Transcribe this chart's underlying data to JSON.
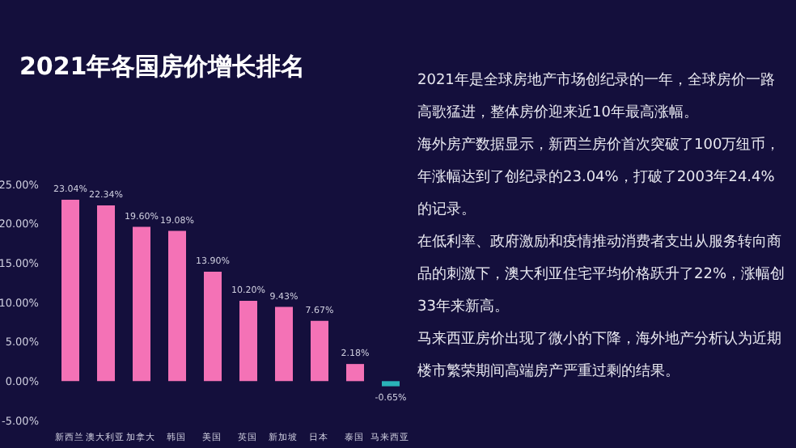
{
  "chart_data": {
    "type": "bar",
    "title": "2021年各国房价增长排名",
    "categories": [
      "新西兰",
      "澳大利亚",
      "加拿大",
      "韩国",
      "美国",
      "英国",
      "新加坡",
      "日本",
      "泰国",
      "马来西亚"
    ],
    "values": [
      23.04,
      22.34,
      19.6,
      19.08,
      13.9,
      10.2,
      9.43,
      7.67,
      2.18,
      -0.65
    ],
    "value_labels": [
      "23.04%",
      "22.34%",
      "19.60%",
      "19.08%",
      "13.90%",
      "10.20%",
      "9.43%",
      "7.67%",
      "2.18%",
      "-0.65%"
    ],
    "colors": [
      "#f472b6",
      "#f472b6",
      "#f472b6",
      "#f472b6",
      "#f472b6",
      "#f472b6",
      "#f472b6",
      "#f472b6",
      "#f472b6",
      "#2ab3b8"
    ],
    "ylim": [
      -5,
      25
    ],
    "yticks": [
      {
        "value": -5,
        "label": "-5.00%"
      },
      {
        "value": 0,
        "label": "0.00%"
      },
      {
        "value": 5,
        "label": "5.00%"
      },
      {
        "value": 10,
        "label": "10.00%"
      },
      {
        "value": 15,
        "label": "15.00%"
      },
      {
        "value": 20,
        "label": "20.00%"
      },
      {
        "value": 25,
        "label": "25.00%"
      }
    ],
    "grid": false,
    "legend": false,
    "annotations": [
      "2021年是全球房地产市场创纪录的一年，全球房价一路高歌猛进，整体房价迎来近10年最高涨幅。",
      "海外房产数据显示，新西兰房价首次突破了100万纽币，年涨幅达到了创纪录的23.04%，打破了2003年24.4%的记录。",
      "在低利率、政府激励和疫情推动消费者支出从服务转向商品的刺激下，澳大利亚住宅平均价格跃升了22%，涨幅创33年来新高。",
      "马来西亚房价出现了微小的下降，海外地产分析认为近期楼市繁荣期间高端房产严重过剩的结果。"
    ]
  }
}
